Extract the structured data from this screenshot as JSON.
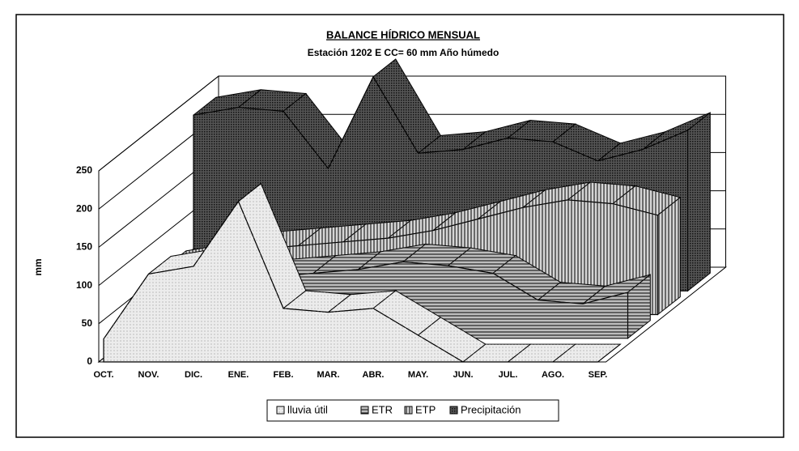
{
  "chart_data": {
    "type": "area3d",
    "title": "BALANCE HÍDRICO MENSUAL",
    "subtitle": "Estación 1202 E  CC= 60 mm  Año húmedo",
    "y_label": "mm",
    "categories": [
      "OCT.",
      "NOV.",
      "DIC.",
      "ENE.",
      "FEB.",
      "MAR.",
      "ABR.",
      "MAY.",
      "JUN.",
      "JUL.",
      "AGO.",
      "SEP."
    ],
    "series": [
      {
        "name": "lluvia útil",
        "color": "#ececec",
        "values": [
          30,
          115,
          125,
          210,
          70,
          65,
          70,
          35,
          0,
          0,
          0,
          0
        ]
      },
      {
        "name": "ETR",
        "color": "#bdbdbd",
        "values": [
          30,
          60,
          70,
          80,
          85,
          90,
          100,
          95,
          85,
          50,
          45,
          60
        ]
      },
      {
        "name": "ETP",
        "color": "#d6d6d6",
        "values": [
          60,
          70,
          85,
          90,
          95,
          100,
          110,
          125,
          140,
          150,
          145,
          130
        ]
      },
      {
        "name": "Precipitación",
        "color": "#555555",
        "values": [
          230,
          240,
          235,
          160,
          280,
          180,
          185,
          200,
          195,
          170,
          185,
          210
        ]
      }
    ],
    "ylim": [
      0,
      250
    ],
    "yticks": [
      0,
      50,
      100,
      150,
      200,
      250
    ],
    "grid": true,
    "legend": "bottom"
  }
}
